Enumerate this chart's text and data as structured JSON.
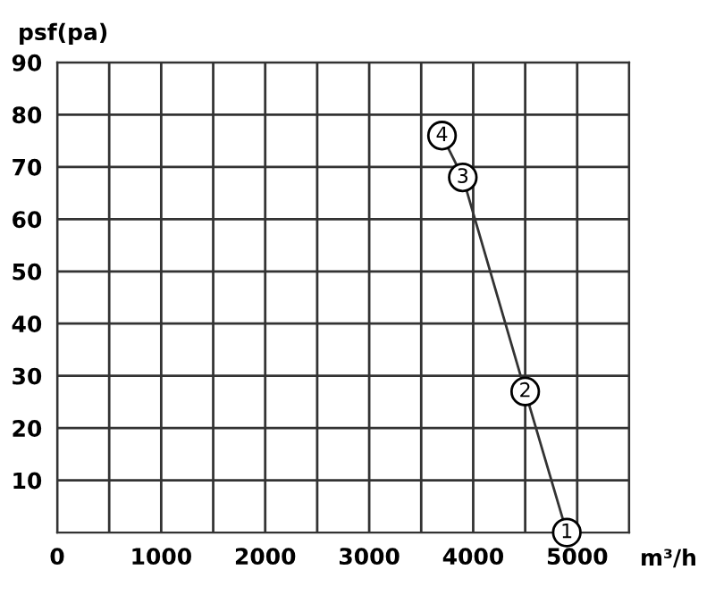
{
  "chart_data": {
    "type": "line",
    "ylabel": "psf(pa)",
    "xlabel": "m³/h",
    "x": [
      3700,
      3900,
      4500,
      4900
    ],
    "series": [
      {
        "color": "#333333",
        "values": [
          76,
          68,
          27,
          0
        ]
      }
    ],
    "annotations": [
      {
        "text": "4",
        "x": 3700,
        "y": 76
      },
      {
        "text": "3",
        "x": 3900,
        "y": 68
      },
      {
        "text": "2",
        "x": 4500,
        "y": 27
      },
      {
        "text": "1",
        "x": 4900,
        "y": 0
      }
    ],
    "xlim": [
      0,
      5500
    ],
    "ylim": [
      0,
      90
    ],
    "xticks": [
      0,
      {
        "value": 500,
        "label": null
      },
      1000,
      {
        "value": 1500,
        "label": null
      },
      2000,
      {
        "value": 2500,
        "label": null
      },
      3000,
      {
        "value": 3500,
        "label": null
      },
      4000,
      {
        "value": 4500,
        "label": null
      },
      5000,
      {
        "value": 5500,
        "label": null
      }
    ],
    "yticks": [
      10,
      20,
      30,
      40,
      50,
      60,
      70,
      80,
      90
    ],
    "grid": true,
    "marker": "circle",
    "line_style": "solid"
  }
}
